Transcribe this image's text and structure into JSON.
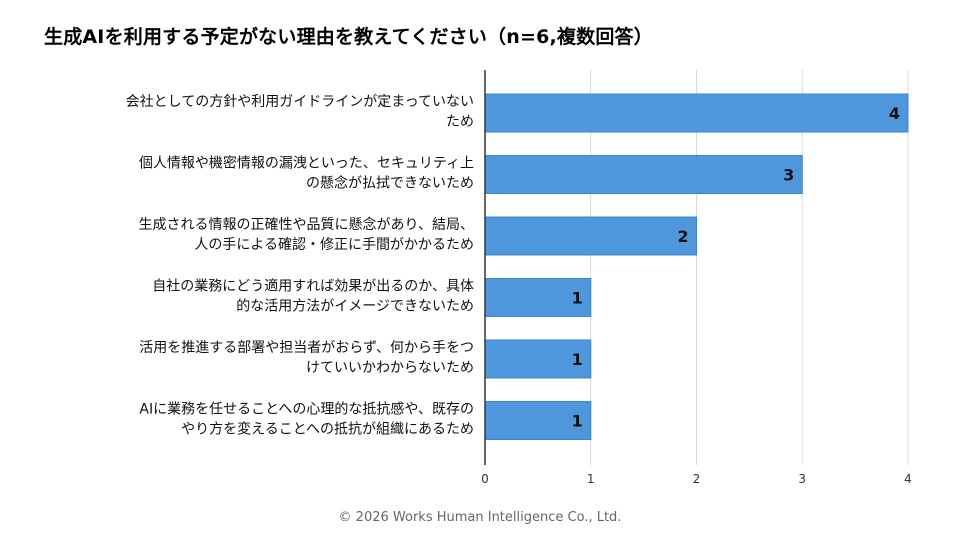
{
  "title": "生成AIを利用する予定がない理由を教えてください（n=6,複数回答）",
  "footer": "© 2026 Works Human Intelligence Co., Ltd.",
  "colors": {
    "bar": "#4f97dc",
    "bar_stroke": "#3e86cc",
    "grid": "#d9d9d9",
    "axis": "#333333"
  },
  "chart_data": {
    "type": "bar",
    "orientation": "horizontal",
    "title": "生成AIを利用する予定がない理由を教えてください（n=6,複数回答）",
    "categories": [
      [
        "会社としての方針や利用ガイドラインが定まっていない",
        "ため"
      ],
      [
        "個人情報や機密情報の漏洩といった、セキュリティ上",
        "の懸念が払拭できないため"
      ],
      [
        "生成される情報の正確性や品質に懸念があり、結局、",
        "人の手による確認・修正に手間がかかるため"
      ],
      [
        "自社の業務にどう適用すれば効果が出るのか、具体",
        "的な活用方法がイメージできないため"
      ],
      [
        "活用を推進する部署や担当者がおらず、何から手をつ",
        "けていいかわからないため"
      ],
      [
        "AIに業務を任せることへの心理的な抵抗感や、既存の",
        "やり方を変えることへの抵抗が組織にあるため"
      ]
    ],
    "values": [
      4,
      3,
      2,
      1,
      1,
      1
    ],
    "xticks": [
      0,
      1,
      2,
      3,
      4
    ],
    "xlim": [
      0,
      4
    ],
    "grid": true
  }
}
